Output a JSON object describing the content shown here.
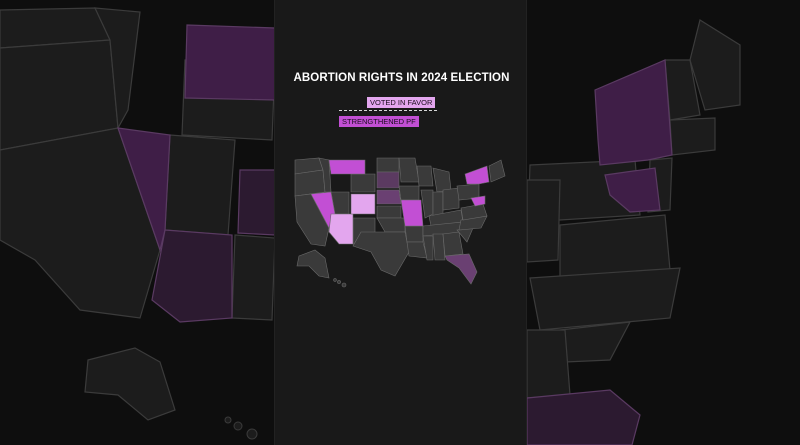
{
  "title": "ABORTION RIGHTS IN 2024 ELECTION",
  "legend": [
    {
      "label": "VOTED IN FAVOR",
      "color": "#e3a6ee"
    },
    {
      "label": "STRENGTHENED PF",
      "color": "#c24fd4"
    }
  ],
  "colors": {
    "background": "#0e0e0e",
    "panel": "#191919",
    "state_default": "#3a3a3a",
    "state_border": "#6a6a6a",
    "strengthened": "#c24fd4",
    "voted_in_favor": "#e3a6ee",
    "muted_purple": "#5b3a61",
    "backdrop_state": "#1c1c1c",
    "backdrop_purple": "#3f1e47"
  },
  "map_regions": {
    "strengthened": [
      "Montana",
      "Nevada",
      "New York",
      "Maryland",
      "Missouri"
    ],
    "voted_in_favor": [
      "Colorado",
      "Arizona",
      "Nebraska",
      "South Dakota",
      "Florida"
    ]
  }
}
